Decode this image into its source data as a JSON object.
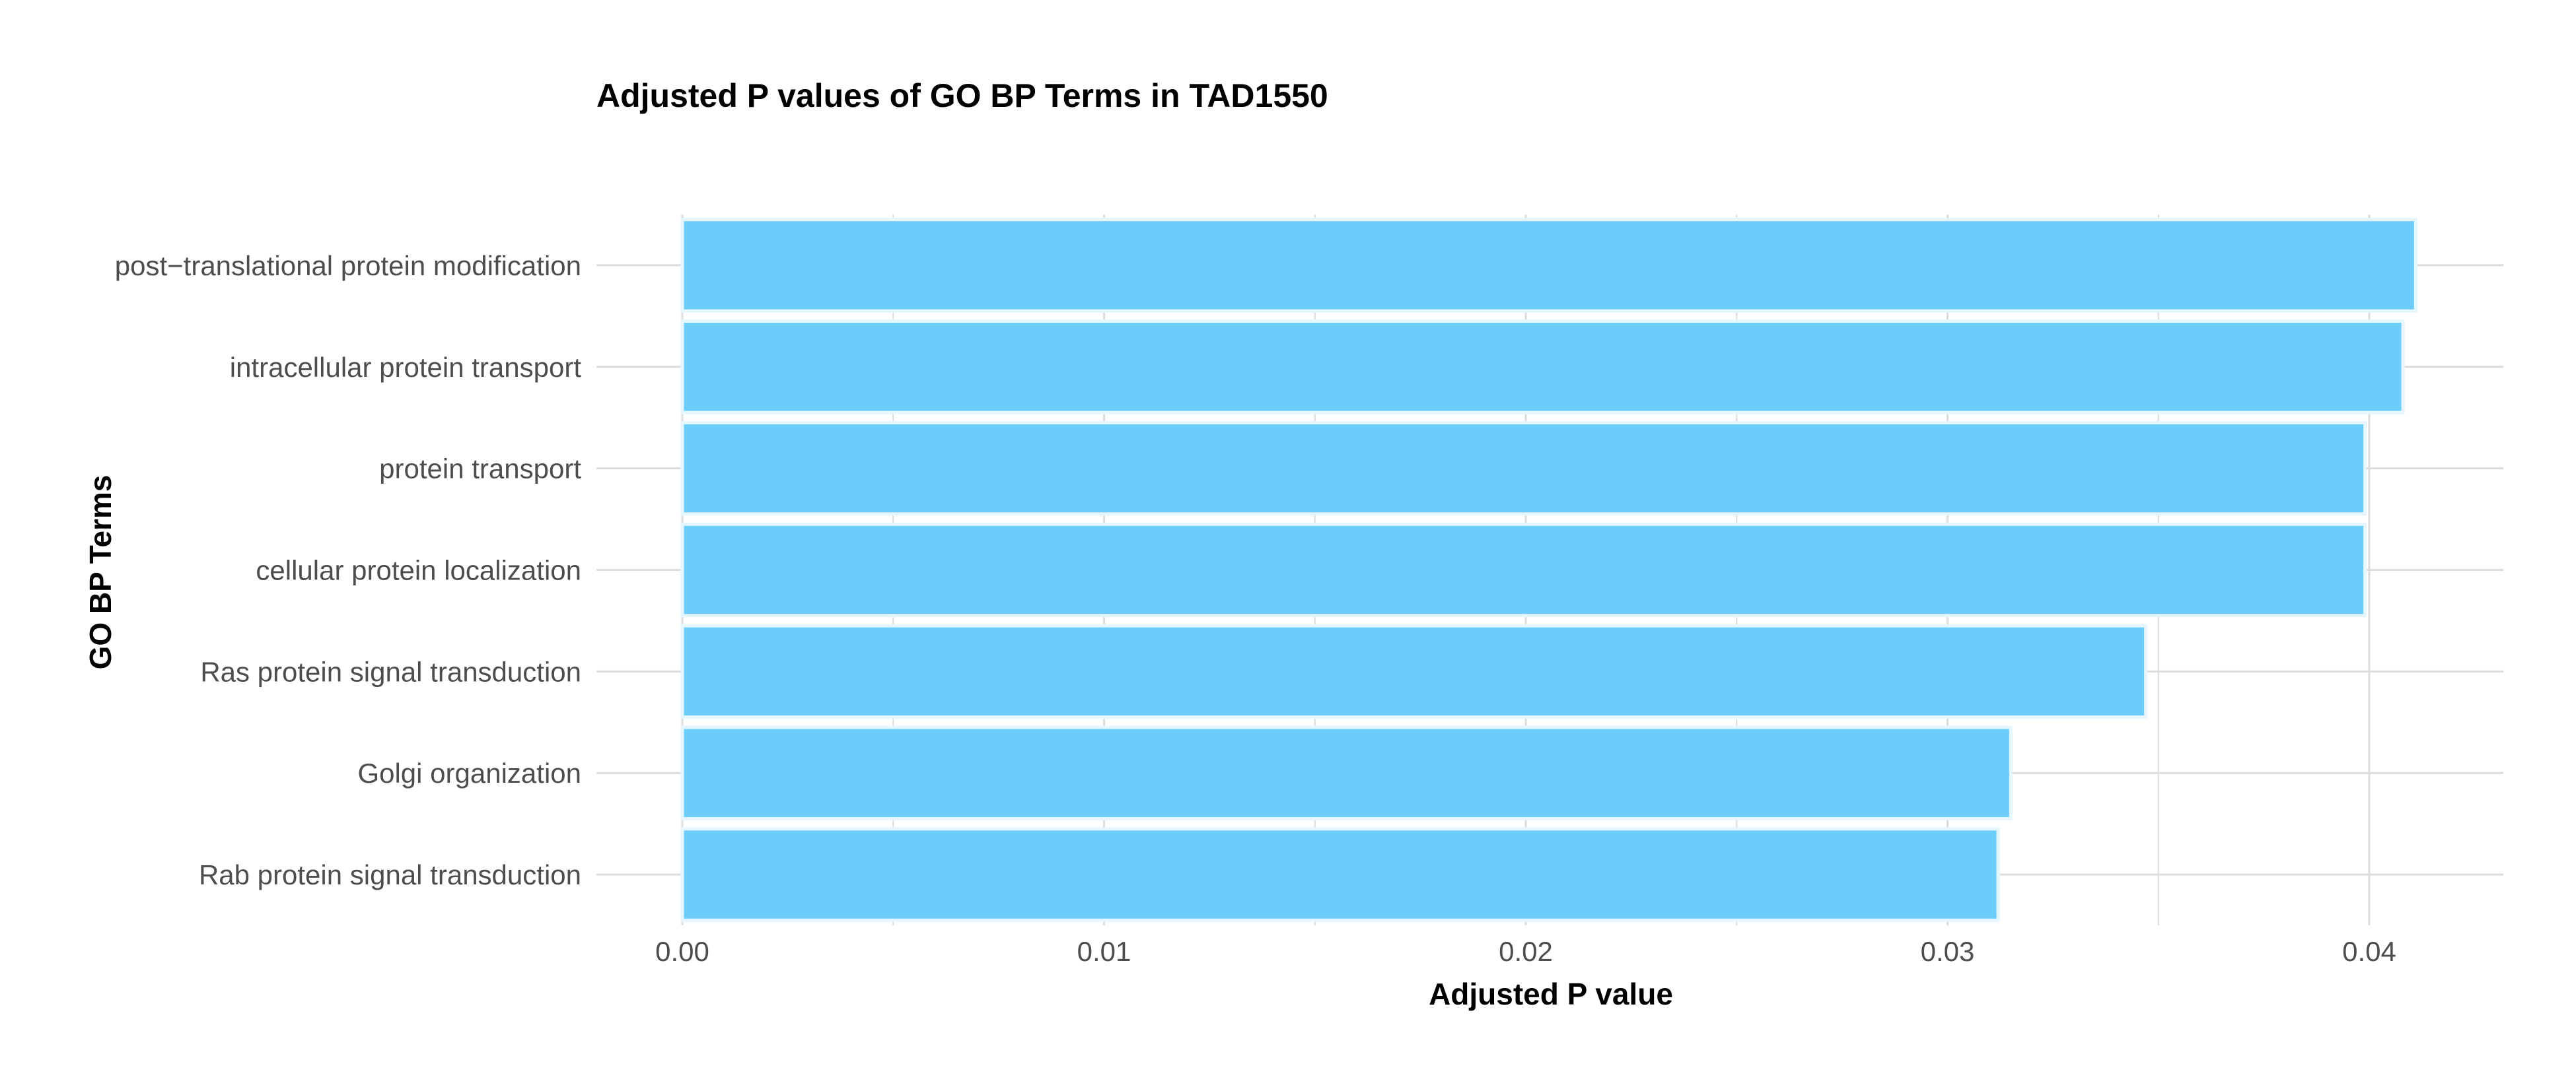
{
  "chart_data": {
    "type": "bar",
    "orientation": "horizontal",
    "title": "Adjusted P values of GO BP Terms in TAD1550",
    "xlabel": "Adjusted P value",
    "ylabel": "GO BP Terms",
    "categories": [
      "post−translational protein modification",
      "intracellular protein transport",
      "protein transport",
      "cellular protein localization",
      "Ras protein signal transduction",
      "Golgi organization",
      "Rab protein signal transduction"
    ],
    "values": [
      0.0411,
      0.0408,
      0.0399,
      0.0399,
      0.0347,
      0.0315,
      0.0312
    ],
    "x_ticks": [
      "0.00",
      "0.01",
      "0.02",
      "0.03",
      "0.04"
    ],
    "xlim": [
      0,
      0.0431
    ],
    "grid": true,
    "legend": "none",
    "colors": {
      "bar_fill": "#6ccdfa",
      "bar_stroke": "#e6f6fe",
      "grid": "#dcdcdc"
    }
  }
}
